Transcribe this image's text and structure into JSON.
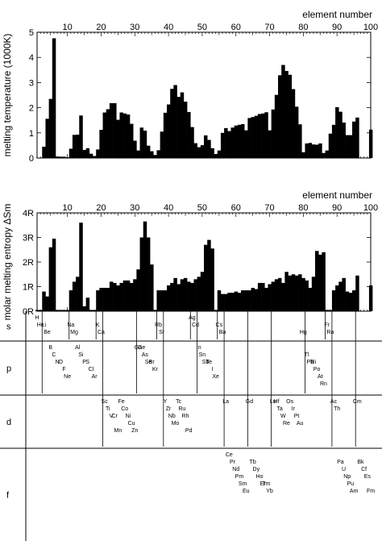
{
  "chart_data": [
    {
      "type": "bar",
      "xlabel": "element number",
      "ylabel": "melting temperature (1000K)",
      "xlim": [
        1,
        100
      ],
      "ylim": [
        0,
        5
      ],
      "xticks": [
        "10",
        "20",
        "30",
        "40",
        "50",
        "60",
        "70",
        "80",
        "90",
        "100"
      ],
      "yticks": [
        "0",
        "1",
        "2",
        "3",
        "4",
        "5"
      ],
      "x": [
        1,
        2,
        3,
        4,
        5,
        6,
        7,
        8,
        9,
        10,
        11,
        12,
        13,
        14,
        15,
        16,
        17,
        18,
        19,
        20,
        21,
        22,
        23,
        24,
        25,
        26,
        27,
        28,
        29,
        30,
        31,
        32,
        33,
        34,
        35,
        36,
        37,
        38,
        39,
        40,
        41,
        42,
        43,
        44,
        45,
        46,
        47,
        48,
        49,
        50,
        51,
        52,
        53,
        54,
        55,
        56,
        57,
        58,
        59,
        60,
        61,
        62,
        63,
        64,
        65,
        66,
        67,
        68,
        69,
        70,
        71,
        72,
        73,
        74,
        75,
        76,
        77,
        78,
        79,
        80,
        81,
        82,
        83,
        84,
        85,
        86,
        87,
        88,
        89,
        90,
        91,
        92,
        93,
        94,
        95,
        96,
        97,
        98,
        99,
        100
      ],
      "values": [
        0.01,
        0.01,
        0.45,
        1.56,
        2.35,
        4.76,
        0.06,
        0.05,
        0.05,
        0.03,
        0.37,
        0.92,
        0.93,
        1.69,
        0.32,
        0.39,
        0.17,
        0.08,
        0.34,
        1.12,
        1.81,
        1.94,
        2.18,
        2.18,
        1.52,
        1.81,
        1.77,
        1.73,
        1.36,
        0.69,
        0.3,
        1.21,
        1.09,
        0.49,
        0.27,
        0.12,
        0.31,
        1.05,
        1.8,
        2.13,
        2.75,
        2.9,
        2.43,
        2.61,
        2.24,
        1.83,
        1.23,
        0.59,
        0.43,
        0.51,
        0.9,
        0.72,
        0.39,
        0.16,
        0.3,
        1.0,
        1.19,
        1.07,
        1.21,
        1.29,
        1.32,
        1.35,
        1.1,
        1.59,
        1.63,
        1.68,
        1.75,
        1.77,
        1.82,
        1.1,
        1.93,
        2.51,
        3.29,
        3.7,
        3.46,
        3.31,
        2.74,
        2.04,
        1.34,
        0.23,
        0.58,
        0.6,
        0.54,
        0.53,
        0.58,
        0.2,
        0.3,
        0.97,
        1.32,
        2.02,
        1.84,
        1.41,
        0.91,
        0.91,
        1.45,
        1.61,
        0.0,
        0.0,
        0.0,
        1.13
      ]
    },
    {
      "type": "bar",
      "xlabel": "element number",
      "ylabel": "molar melting entropy ΔSm",
      "xlim": [
        1,
        100
      ],
      "ylim": [
        0,
        4
      ],
      "xticks": [
        "10",
        "20",
        "30",
        "40",
        "50",
        "60",
        "70",
        "80",
        "90",
        "100"
      ],
      "yticks": [
        "0R",
        "1R",
        "2R",
        "3R",
        "4R"
      ],
      "x": [
        1,
        2,
        3,
        4,
        5,
        6,
        7,
        8,
        9,
        10,
        11,
        12,
        13,
        14,
        15,
        16,
        17,
        18,
        19,
        20,
        21,
        22,
        23,
        24,
        25,
        26,
        27,
        28,
        29,
        30,
        31,
        32,
        33,
        34,
        35,
        36,
        37,
        38,
        39,
        40,
        41,
        42,
        43,
        44,
        45,
        46,
        47,
        48,
        49,
        50,
        51,
        52,
        53,
        54,
        55,
        56,
        57,
        58,
        59,
        60,
        61,
        62,
        63,
        64,
        65,
        66,
        67,
        68,
        69,
        70,
        71,
        72,
        73,
        74,
        75,
        76,
        77,
        78,
        79,
        80,
        81,
        82,
        83,
        84,
        85,
        86,
        87,
        88,
        89,
        90,
        91,
        92,
        93,
        94,
        95,
        96,
        97,
        98,
        99,
        100
      ],
      "values": [
        0.05,
        0.05,
        0.8,
        0.6,
        2.6,
        2.95,
        0.05,
        0.05,
        0.05,
        0.05,
        0.85,
        1.2,
        1.4,
        3.6,
        0.2,
        0.55,
        0.05,
        0.05,
        0.85,
        0.95,
        0.95,
        0.95,
        1.2,
        1.15,
        1.05,
        1.15,
        1.25,
        1.25,
        1.15,
        1.3,
        1.7,
        3.0,
        3.65,
        3.0,
        1.9,
        0.05,
        0.85,
        0.85,
        0.85,
        1.05,
        1.15,
        1.35,
        1.1,
        1.3,
        1.35,
        1.2,
        1.15,
        1.3,
        1.4,
        1.6,
        2.7,
        2.9,
        2.55,
        0.05,
        0.85,
        0.7,
        0.7,
        0.75,
        0.75,
        0.8,
        0.75,
        0.85,
        0.85,
        0.85,
        0.95,
        0.9,
        1.15,
        1.15,
        0.95,
        1.1,
        1.2,
        1.3,
        1.35,
        1.15,
        1.6,
        1.45,
        1.5,
        1.45,
        1.5,
        1.35,
        1.25,
        0.95,
        1.4,
        2.45,
        2.3,
        2.4,
        0.05,
        0.05,
        0.85,
        1.05,
        1.2,
        1.35,
        0.8,
        0.75,
        0.85,
        1.45,
        0.0,
        0.0,
        0.0,
        1.05
      ]
    }
  ],
  "groups": [
    "s",
    "p",
    "d",
    "f"
  ],
  "element_labels": [
    {
      "text": "H",
      "x": 1,
      "g": "s",
      "r": 0
    },
    {
      "text": "He",
      "x": 2,
      "g": "s",
      "r": 1
    },
    {
      "text": "Li",
      "x": 3,
      "g": "s",
      "r": 1
    },
    {
      "text": "Be",
      "x": 4,
      "g": "s",
      "r": 2
    },
    {
      "text": "Mg",
      "x": 12,
      "g": "s",
      "r": 2
    },
    {
      "text": "Na",
      "x": 11,
      "g": "s",
      "r": 1
    },
    {
      "text": "K",
      "x": 19,
      "g": "s",
      "r": 1
    },
    {
      "text": "Ca",
      "x": 20,
      "g": "s",
      "r": 2
    },
    {
      "text": "Rb",
      "x": 37,
      "g": "s",
      "r": 1
    },
    {
      "text": "Sr",
      "x": 38,
      "g": "s",
      "r": 2
    },
    {
      "text": "Cs",
      "x": 55,
      "g": "s",
      "r": 1
    },
    {
      "text": "Ba",
      "x": 56,
      "g": "s",
      "r": 2
    },
    {
      "text": "Fr",
      "x": 87,
      "g": "s",
      "r": 1
    },
    {
      "text": "Ra",
      "x": 88,
      "g": "s",
      "r": 2
    },
    {
      "text": "Hg",
      "x": 80,
      "g": "s",
      "r": 2
    },
    {
      "text": "B",
      "x": 5,
      "g": "p",
      "r": 0
    },
    {
      "text": "C",
      "x": 6,
      "g": "p",
      "r": 1
    },
    {
      "text": "N",
      "x": 7,
      "g": "p",
      "r": 2
    },
    {
      "text": "O",
      "x": 8,
      "g": "p",
      "r": 2
    },
    {
      "text": "F",
      "x": 9,
      "g": "p",
      "r": 3
    },
    {
      "text": "Ne",
      "x": 10,
      "g": "p",
      "r": 4
    },
    {
      "text": "Al",
      "x": 13,
      "g": "p",
      "r": 0
    },
    {
      "text": "Si",
      "x": 14,
      "g": "p",
      "r": 1
    },
    {
      "text": "P",
      "x": 15,
      "g": "p",
      "r": 2
    },
    {
      "text": "S",
      "x": 16,
      "g": "p",
      "r": 2
    },
    {
      "text": "Cl",
      "x": 17,
      "g": "p",
      "r": 3
    },
    {
      "text": "Ar",
      "x": 18,
      "g": "p",
      "r": 4
    },
    {
      "text": "Ga",
      "x": 31,
      "g": "p",
      "r": 0
    },
    {
      "text": "Ge",
      "x": 32,
      "g": "p",
      "r": 0
    },
    {
      "text": "As",
      "x": 33,
      "g": "p",
      "r": 1
    },
    {
      "text": "Se",
      "x": 34,
      "g": "p",
      "r": 2
    },
    {
      "text": "Br",
      "x": 35,
      "g": "p",
      "r": 2
    },
    {
      "text": "Kr",
      "x": 36,
      "g": "p",
      "r": 3
    },
    {
      "text": "In",
      "x": 49,
      "g": "p",
      "r": 0
    },
    {
      "text": "Sn",
      "x": 50,
      "g": "p",
      "r": 1
    },
    {
      "text": "Sb",
      "x": 51,
      "g": "p",
      "r": 2
    },
    {
      "text": "Te",
      "x": 52,
      "g": "p",
      "r": 2
    },
    {
      "text": "I",
      "x": 53,
      "g": "p",
      "r": 3
    },
    {
      "text": "Xe",
      "x": 54,
      "g": "p",
      "r": 4
    },
    {
      "text": "Tl",
      "x": 81,
      "g": "p",
      "r": 1
    },
    {
      "text": "Pb",
      "x": 82,
      "g": "p",
      "r": 2
    },
    {
      "text": "Bi",
      "x": 83,
      "g": "p",
      "r": 2
    },
    {
      "text": "Po",
      "x": 84,
      "g": "p",
      "r": 3
    },
    {
      "text": "At",
      "x": 85,
      "g": "p",
      "r": 4
    },
    {
      "text": "Rn",
      "x": 86,
      "g": "p",
      "r": 5
    },
    {
      "text": "Sc",
      "x": 21,
      "g": "d",
      "r": 0
    },
    {
      "text": "Ti",
      "x": 22,
      "g": "d",
      "r": 1
    },
    {
      "text": "V",
      "x": 23,
      "g": "d",
      "r": 2
    },
    {
      "text": "Cr",
      "x": 24,
      "g": "d",
      "r": 2
    },
    {
      "text": "Mn",
      "x": 25,
      "g": "d",
      "r": 4
    },
    {
      "text": "Fe",
      "x": 26,
      "g": "d",
      "r": 0
    },
    {
      "text": "Co",
      "x": 27,
      "g": "d",
      "r": 1
    },
    {
      "text": "Ni",
      "x": 28,
      "g": "d",
      "r": 2
    },
    {
      "text": "Cu",
      "x": 29,
      "g": "d",
      "r": 3
    },
    {
      "text": "Zn",
      "x": 30,
      "g": "d",
      "r": 4
    },
    {
      "text": "Y",
      "x": 39,
      "g": "d",
      "r": 0
    },
    {
      "text": "Zr",
      "x": 40,
      "g": "d",
      "r": 1
    },
    {
      "text": "Nb",
      "x": 41,
      "g": "d",
      "r": 2
    },
    {
      "text": "Mo",
      "x": 42,
      "g": "d",
      "r": 3
    },
    {
      "text": "Tc",
      "x": 43,
      "g": "d",
      "r": 0
    },
    {
      "text": "Ru",
      "x": 44,
      "g": "d",
      "r": 1
    },
    {
      "text": "Rh",
      "x": 45,
      "g": "d",
      "r": 2
    },
    {
      "text": "Pd",
      "x": 46,
      "g": "d",
      "r": 4
    },
    {
      "text": "Ag",
      "x": 47,
      "g": "s",
      "r": 0
    },
    {
      "text": "Cd",
      "x": 48,
      "g": "s",
      "r": 1
    },
    {
      "text": "La",
      "x": 57,
      "g": "d",
      "r": 0
    },
    {
      "text": "Lu",
      "x": 71,
      "g": "d",
      "r": 0
    },
    {
      "text": "Hf",
      "x": 72,
      "g": "d",
      "r": 0
    },
    {
      "text": "Ta",
      "x": 73,
      "g": "d",
      "r": 1
    },
    {
      "text": "W",
      "x": 74,
      "g": "d",
      "r": 2
    },
    {
      "text": "Re",
      "x": 75,
      "g": "d",
      "r": 3
    },
    {
      "text": "Os",
      "x": 76,
      "g": "d",
      "r": 0
    },
    {
      "text": "Ir",
      "x": 77,
      "g": "d",
      "r": 1
    },
    {
      "text": "Pt",
      "x": 78,
      "g": "d",
      "r": 2
    },
    {
      "text": "Au",
      "x": 79,
      "g": "d",
      "r": 3
    },
    {
      "text": "Ac",
      "x": 89,
      "g": "d",
      "r": 0
    },
    {
      "text": "Th",
      "x": 90,
      "g": "d",
      "r": 1
    },
    {
      "text": "Ce",
      "x": 58,
      "g": "f",
      "r": 0
    },
    {
      "text": "Pr",
      "x": 59,
      "g": "f",
      "r": 1
    },
    {
      "text": "Nd",
      "x": 60,
      "g": "f",
      "r": 2
    },
    {
      "text": "Pm",
      "x": 61,
      "g": "f",
      "r": 3
    },
    {
      "text": "Sm",
      "x": 62,
      "g": "f",
      "r": 4
    },
    {
      "text": "Eu",
      "x": 63,
      "g": "f",
      "r": 5
    },
    {
      "text": "Gd",
      "x": 64,
      "g": "d",
      "r": 0
    },
    {
      "text": "Tb",
      "x": 65,
      "g": "f",
      "r": 1
    },
    {
      "text": "Dy",
      "x": 66,
      "g": "f",
      "r": 2
    },
    {
      "text": "Ho",
      "x": 67,
      "g": "f",
      "r": 3
    },
    {
      "text": "Er",
      "x": 68,
      "g": "f",
      "r": 4
    },
    {
      "text": "Tm",
      "x": 69,
      "g": "f",
      "r": 4
    },
    {
      "text": "Yb",
      "x": 70,
      "g": "f",
      "r": 5
    },
    {
      "text": "Pa",
      "x": 91,
      "g": "f",
      "r": 1
    },
    {
      "text": "U",
      "x": 92,
      "g": "f",
      "r": 2
    },
    {
      "text": "Np",
      "x": 93,
      "g": "f",
      "r": 3
    },
    {
      "text": "Pu",
      "x": 94,
      "g": "f",
      "r": 4
    },
    {
      "text": "Am",
      "x": 95,
      "g": "f",
      "r": 5
    },
    {
      "text": "Cm",
      "x": 96,
      "g": "d",
      "r": 0
    },
    {
      "text": "Bk",
      "x": 97,
      "g": "f",
      "r": 1
    },
    {
      "text": "Cf",
      "x": 98,
      "g": "f",
      "r": 2
    },
    {
      "text": "Es",
      "x": 99,
      "g": "f",
      "r": 3
    },
    {
      "text": "Fm",
      "x": 100,
      "g": "f",
      "r": 5
    }
  ]
}
